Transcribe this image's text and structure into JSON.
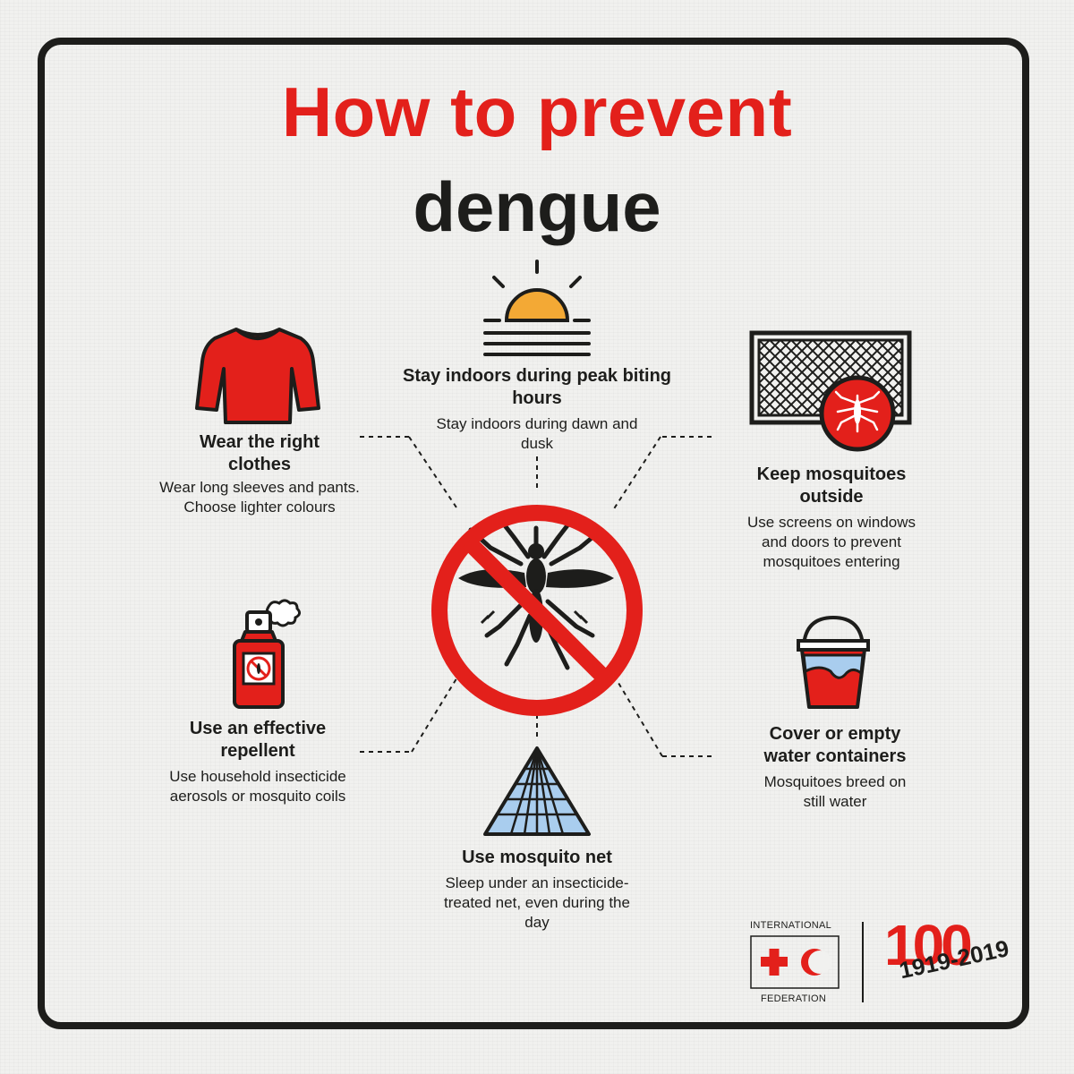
{
  "title": {
    "line1": "How to prevent",
    "line2": "dengue"
  },
  "tips": {
    "indoors": {
      "heading": "Stay indoors during peak biting hours",
      "text": "Stay indoors during dawn and dusk",
      "icon": "sunrise-icon"
    },
    "clothes": {
      "heading": "Wear the right clothes",
      "text": "Wear long sleeves and pants. Choose lighter colours",
      "icon": "long-sleeve-shirt-icon"
    },
    "outside": {
      "heading": "Keep mosquitoes outside",
      "text": "Use screens on windows and doors to prevent mosquitoes entering",
      "icon": "window-screen-icon"
    },
    "repellent": {
      "heading": "Use an effective repellent",
      "text": "Use household insecticide aerosols or mosquito coils",
      "icon": "spray-can-icon"
    },
    "containers": {
      "heading": "Cover or empty water containers",
      "text": "Mosquitoes breed on still water",
      "icon": "bucket-icon"
    },
    "net": {
      "heading": "Use mosquito net",
      "text": "Sleep under an insecticide-treated net, even during the day",
      "icon": "mosquito-net-icon"
    }
  },
  "center_icon": "no-mosquito-icon",
  "logo": {
    "top": "INTERNATIONAL",
    "bottom": "FEDERATION",
    "anniversary": "100",
    "years": "1919-2019"
  },
  "colors": {
    "red": "#e3201b",
    "black": "#1d1d1b",
    "sun": "#f3a935",
    "blue": "#a9cdee",
    "background": "#f1f1ef"
  }
}
